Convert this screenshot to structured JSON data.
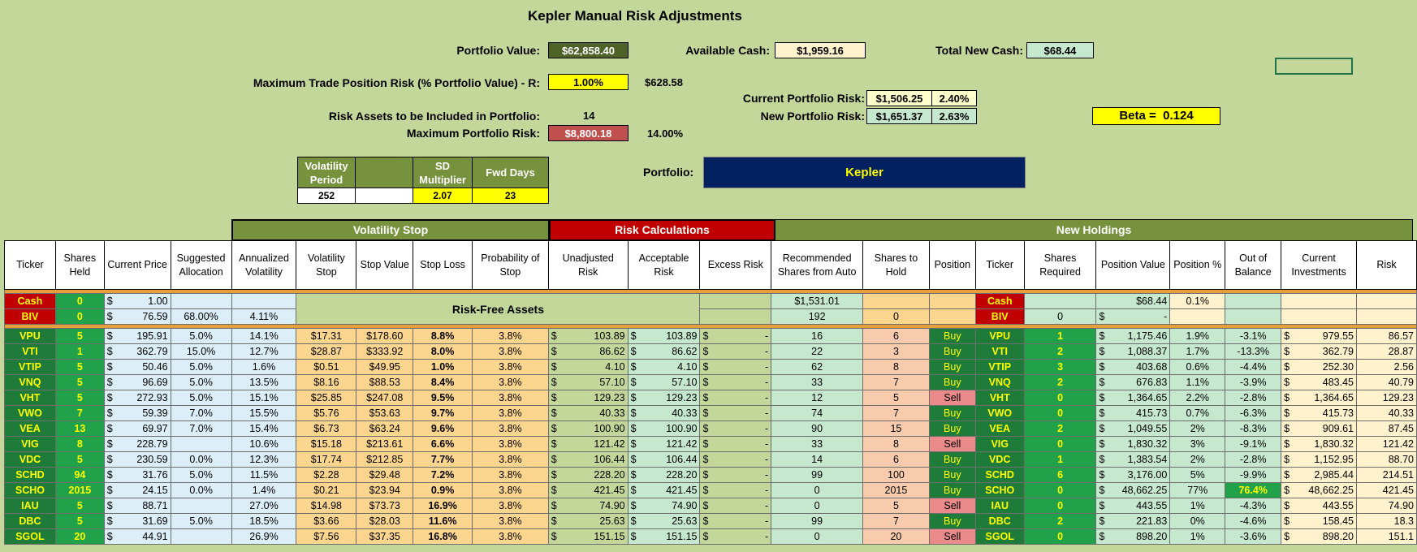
{
  "title": "Kepler Manual Risk Adjustments",
  "top": {
    "portfolio_value_label": "Portfolio Value:",
    "portfolio_value": "$62,858.40",
    "available_cash_label": "Available Cash:",
    "available_cash": "$1,959.16",
    "total_new_cash_label": "Total New Cash:",
    "total_new_cash": "$68.44",
    "max_trade_label": "Maximum Trade Position Risk (% Portfolio Value) - R:",
    "max_trade_pct": "1.00%",
    "max_trade_amt": "$628.58",
    "current_risk_label": "Current Portfolio Risk:",
    "current_risk_amt": "$1,506.25",
    "current_risk_pct": "2.40%",
    "new_risk_label": "New Portfolio Risk:",
    "new_risk_amt": "$1,651.37",
    "new_risk_pct": "2.63%",
    "beta_label": "Beta =",
    "beta_value": "0.124",
    "risk_assets_label": "Risk Assets to be Included in Portfolio:",
    "risk_assets_value": "14",
    "max_portfolio_risk_label": "Maximum Portfolio Risk:",
    "max_portfolio_risk_amt": "$8,800.18",
    "max_portfolio_risk_pct": "14.00%",
    "vol_period_label": "Volatility Period",
    "vol_period_value": "252",
    "sd_mult_label": "SD Multiplier",
    "sd_mult_value": "2.07",
    "fwd_days_label": "Fwd Days",
    "fwd_days_value": "23",
    "portfolio_label": "Portfolio:",
    "portfolio_name": "Kepler"
  },
  "groups": {
    "volatility_stop": "Volatility Stop",
    "risk_calculations": "Risk Calculations",
    "new_holdings": "New Holdings",
    "risk_free": "Risk-Free Assets"
  },
  "columns": [
    "Ticker",
    "Shares Held",
    "Current Price",
    "Suggested Allocation",
    "Annualized Volatility",
    "Volatility Stop",
    "Stop Value",
    "Stop Loss",
    "Probability of Stop",
    "Unadjusted Risk",
    "Acceptable Risk",
    "Excess Risk",
    "Recommended Shares from Auto",
    "Shares to Hold",
    "Position",
    "Ticker",
    "Shares Required",
    "Position Value",
    "Position %",
    "Out of Balance",
    "Current Investments",
    "Risk"
  ],
  "cash_row": {
    "ticker": "Cash",
    "shares": "0",
    "price": "1.00",
    "rec": "$1,531.01",
    "ticker2": "Cash",
    "pos_value": "$68.44",
    "pos_pct": "0.1%"
  },
  "biv_row": {
    "ticker": "BIV",
    "shares": "0",
    "price": "76.59",
    "alloc": "68.00%",
    "vol": "4.11%",
    "rec": "192",
    "hold": "0",
    "ticker2": "BIV",
    "req": "0",
    "pos_value": "-"
  },
  "rows": [
    {
      "ticker": "VPU",
      "shares": "5",
      "price": "195.91",
      "alloc": "5.0%",
      "vol": "14.1%",
      "vstop": "$17.31",
      "sval": "$178.60",
      "sloss": "8.8%",
      "prob": "3.8%",
      "unadj": "103.89",
      "accept": "103.89",
      "excess": "-",
      "rec": "16",
      "hold": "6",
      "pos": "Buy",
      "ticker2": "VPU",
      "req": "1",
      "pval": "1,175.46",
      "ppct": "1.9%",
      "oob": "-3.1%",
      "cur": "979.55",
      "risk": "86.57"
    },
    {
      "ticker": "VTI",
      "shares": "1",
      "price": "362.79",
      "alloc": "15.0%",
      "vol": "12.7%",
      "vstop": "$28.87",
      "sval": "$333.92",
      "sloss": "8.0%",
      "prob": "3.8%",
      "unadj": "86.62",
      "accept": "86.62",
      "excess": "-",
      "rec": "22",
      "hold": "3",
      "pos": "Buy",
      "ticker2": "VTI",
      "req": "2",
      "pval": "1,088.37",
      "ppct": "1.7%",
      "oob": "-13.3%",
      "cur": "362.79",
      "risk": "28.87"
    },
    {
      "ticker": "VTIP",
      "shares": "5",
      "price": "50.46",
      "alloc": "5.0%",
      "vol": "1.6%",
      "vstop": "$0.51",
      "sval": "$49.95",
      "sloss": "1.0%",
      "prob": "3.8%",
      "unadj": "4.10",
      "accept": "4.10",
      "excess": "-",
      "rec": "62",
      "hold": "8",
      "pos": "Buy",
      "ticker2": "VTIP",
      "req": "3",
      "pval": "403.68",
      "ppct": "0.6%",
      "oob": "-4.4%",
      "cur": "252.30",
      "risk": "2.56"
    },
    {
      "ticker": "VNQ",
      "shares": "5",
      "price": "96.69",
      "alloc": "5.0%",
      "vol": "13.5%",
      "vstop": "$8.16",
      "sval": "$88.53",
      "sloss": "8.4%",
      "prob": "3.8%",
      "unadj": "57.10",
      "accept": "57.10",
      "excess": "-",
      "rec": "33",
      "hold": "7",
      "pos": "Buy",
      "ticker2": "VNQ",
      "req": "2",
      "pval": "676.83",
      "ppct": "1.1%",
      "oob": "-3.9%",
      "cur": "483.45",
      "risk": "40.79"
    },
    {
      "ticker": "VHT",
      "shares": "5",
      "price": "272.93",
      "alloc": "5.0%",
      "vol": "15.1%",
      "vstop": "$25.85",
      "sval": "$247.08",
      "sloss": "9.5%",
      "prob": "3.8%",
      "unadj": "129.23",
      "accept": "129.23",
      "excess": "-",
      "rec": "12",
      "hold": "5",
      "pos": "Sell",
      "ticker2": "VHT",
      "req": "0",
      "pval": "1,364.65",
      "ppct": "2.2%",
      "oob": "-2.8%",
      "cur": "1,364.65",
      "risk": "129.23"
    },
    {
      "ticker": "VWO",
      "shares": "7",
      "price": "59.39",
      "alloc": "7.0%",
      "vol": "15.5%",
      "vstop": "$5.76",
      "sval": "$53.63",
      "sloss": "9.7%",
      "prob": "3.8%",
      "unadj": "40.33",
      "accept": "40.33",
      "excess": "-",
      "rec": "74",
      "hold": "7",
      "pos": "Buy",
      "ticker2": "VWO",
      "req": "0",
      "pval": "415.73",
      "ppct": "0.7%",
      "oob": "-6.3%",
      "cur": "415.73",
      "risk": "40.33"
    },
    {
      "ticker": "VEA",
      "shares": "13",
      "price": "69.97",
      "alloc": "7.0%",
      "vol": "15.4%",
      "vstop": "$6.73",
      "sval": "$63.24",
      "sloss": "9.6%",
      "prob": "3.8%",
      "unadj": "100.90",
      "accept": "100.90",
      "excess": "-",
      "rec": "90",
      "hold": "15",
      "pos": "Buy",
      "ticker2": "VEA",
      "req": "2",
      "pval": "1,049.55",
      "ppct": "2%",
      "oob": "-8.3%",
      "cur": "909.61",
      "risk": "87.45"
    },
    {
      "ticker": "VIG",
      "shares": "8",
      "price": "228.79",
      "alloc": "",
      "vol": "10.6%",
      "vstop": "$15.18",
      "sval": "$213.61",
      "sloss": "6.6%",
      "prob": "3.8%",
      "unadj": "121.42",
      "accept": "121.42",
      "excess": "-",
      "rec": "33",
      "hold": "8",
      "pos": "Sell",
      "ticker2": "VIG",
      "req": "0",
      "pval": "1,830.32",
      "ppct": "3%",
      "oob": "-9.1%",
      "cur": "1,830.32",
      "risk": "121.42"
    },
    {
      "ticker": "VDC",
      "shares": "5",
      "price": "230.59",
      "alloc": "0.0%",
      "vol": "12.3%",
      "vstop": "$17.74",
      "sval": "$212.85",
      "sloss": "7.7%",
      "prob": "3.8%",
      "unadj": "106.44",
      "accept": "106.44",
      "excess": "-",
      "rec": "14",
      "hold": "6",
      "pos": "Buy",
      "ticker2": "VDC",
      "req": "1",
      "pval": "1,383.54",
      "ppct": "2%",
      "oob": "-2.8%",
      "cur": "1,152.95",
      "risk": "88.70"
    },
    {
      "ticker": "SCHD",
      "shares": "94",
      "price": "31.76",
      "alloc": "5.0%",
      "vol": "11.5%",
      "vstop": "$2.28",
      "sval": "$29.48",
      "sloss": "7.2%",
      "prob": "3.8%",
      "unadj": "228.20",
      "accept": "228.20",
      "excess": "-",
      "rec": "99",
      "hold": "100",
      "pos": "Buy",
      "ticker2": "SCHD",
      "req": "6",
      "pval": "3,176.00",
      "ppct": "5%",
      "oob": "-9.9%",
      "cur": "2,985.44",
      "risk": "214.51"
    },
    {
      "ticker": "SCHO",
      "shares": "2015",
      "price": "24.15",
      "alloc": "0.0%",
      "vol": "1.4%",
      "vstop": "$0.21",
      "sval": "$23.94",
      "sloss": "0.9%",
      "prob": "3.8%",
      "unadj": "421.45",
      "accept": "421.45",
      "excess": "-",
      "rec": "0",
      "hold": "2015",
      "pos": "Buy",
      "ticker2": "SCHO",
      "req": "0",
      "pval": "48,662.25",
      "ppct": "77%",
      "oob": "76.4%",
      "cur": "48,662.25",
      "risk": "421.45"
    },
    {
      "ticker": "IAU",
      "shares": "5",
      "price": "88.71",
      "alloc": "",
      "vol": "27.0%",
      "vstop": "$14.98",
      "sval": "$73.73",
      "sloss": "16.9%",
      "prob": "3.8%",
      "unadj": "74.90",
      "accept": "74.90",
      "excess": "-",
      "rec": "0",
      "hold": "5",
      "pos": "Sell",
      "ticker2": "IAU",
      "req": "0",
      "pval": "443.55",
      "ppct": "1%",
      "oob": "-4.3%",
      "cur": "443.55",
      "risk": "74.90"
    },
    {
      "ticker": "DBC",
      "shares": "5",
      "price": "31.69",
      "alloc": "5.0%",
      "vol": "18.5%",
      "vstop": "$3.66",
      "sval": "$28.03",
      "sloss": "11.6%",
      "prob": "3.8%",
      "unadj": "25.63",
      "accept": "25.63",
      "excess": "-",
      "rec": "99",
      "hold": "7",
      "pos": "Buy",
      "ticker2": "DBC",
      "req": "2",
      "pval": "221.83",
      "ppct": "0%",
      "oob": "-4.6%",
      "cur": "158.45",
      "risk": "18.3"
    },
    {
      "ticker": "SGOL",
      "shares": "20",
      "price": "44.91",
      "alloc": "",
      "vol": "26.9%",
      "vstop": "$7.56",
      "sval": "$37.35",
      "sloss": "16.8%",
      "prob": "3.8%",
      "unadj": "151.15",
      "accept": "151.15",
      "excess": "-",
      "rec": "0",
      "hold": "20",
      "pos": "Sell",
      "ticker2": "SGOL",
      "req": "0",
      "pval": "898.20",
      "ppct": "1%",
      "oob": "-3.6%",
      "cur": "898.20",
      "risk": "151.1"
    }
  ],
  "colors": {
    "background": "#c4d79b",
    "olive": "#76923c",
    "red_header": "#c00000",
    "navy": "#002060",
    "yellow": "#ffff00"
  }
}
